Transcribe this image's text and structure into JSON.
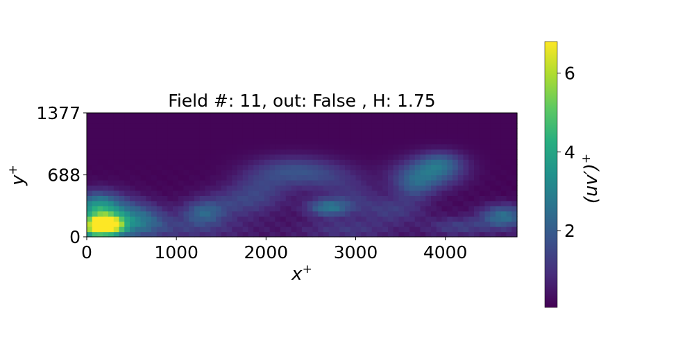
{
  "chart_data": {
    "type": "heatmap",
    "title": "Field #: 11, out: False , H: 1.75",
    "xlabel": "x",
    "xlabel_sup": "+",
    "ylabel": "y",
    "ylabel_sup": "+",
    "xlim": [
      0,
      4800
    ],
    "ylim": [
      0,
      1377
    ],
    "xticks": [
      0,
      1000,
      2000,
      3000,
      4000
    ],
    "xtick_labels": [
      "0",
      "1000",
      "2000",
      "3000",
      "4000"
    ],
    "yticks": [
      0,
      688,
      1377
    ],
    "ytick_labels": [
      "0",
      "688",
      "1377"
    ],
    "colormap": "viridis",
    "colorbar": {
      "label": "(uv′)",
      "label_sup": "+",
      "range": [
        0.05,
        6.8
      ],
      "ticks": [
        2,
        4,
        6
      ],
      "tick_labels": [
        "2",
        "4",
        "6"
      ]
    },
    "grid": false,
    "features": [
      {
        "x": 220,
        "y": 130,
        "sx": 120,
        "sy": 70,
        "value": 6.4
      },
      {
        "x": 250,
        "y": 200,
        "sx": 280,
        "sy": 160,
        "value": 3.0
      },
      {
        "x": 120,
        "y": 350,
        "sx": 160,
        "sy": 110,
        "value": 2.0
      },
      {
        "x": 60,
        "y": 100,
        "sx": 90,
        "sy": 80,
        "value": 2.2
      },
      {
        "x": 650,
        "y": 200,
        "sx": 180,
        "sy": 110,
        "value": 1.1
      },
      {
        "x": 1300,
        "y": 270,
        "sx": 160,
        "sy": 90,
        "value": 1.7
      },
      {
        "x": 1650,
        "y": 380,
        "sx": 300,
        "sy": 120,
        "value": 1.0
      },
      {
        "x": 2300,
        "y": 750,
        "sx": 300,
        "sy": 110,
        "value": 1.3
      },
      {
        "x": 1950,
        "y": 560,
        "sx": 240,
        "sy": 140,
        "value": 1.0
      },
      {
        "x": 2700,
        "y": 330,
        "sx": 170,
        "sy": 70,
        "value": 2.4
      },
      {
        "x": 2700,
        "y": 650,
        "sx": 280,
        "sy": 120,
        "value": 0.9
      },
      {
        "x": 3400,
        "y": 300,
        "sx": 250,
        "sy": 100,
        "value": 1.0
      },
      {
        "x": 3800,
        "y": 700,
        "sx": 260,
        "sy": 120,
        "value": 2.0
      },
      {
        "x": 3950,
        "y": 830,
        "sx": 180,
        "sy": 90,
        "value": 1.5
      },
      {
        "x": 3650,
        "y": 550,
        "sx": 160,
        "sy": 110,
        "value": 1.2
      },
      {
        "x": 4650,
        "y": 230,
        "sx": 180,
        "sy": 90,
        "value": 2.3
      },
      {
        "x": 4150,
        "y": 120,
        "sx": 240,
        "sy": 70,
        "value": 1.0
      },
      {
        "x": 1100,
        "y": 100,
        "sx": 450,
        "sy": 90,
        "value": 0.8
      },
      {
        "x": 2900,
        "y": 90,
        "sx": 350,
        "sy": 80,
        "value": 0.8
      },
      {
        "x": 3000,
        "y": 450,
        "sx": 200,
        "sy": 110,
        "value": 0.7
      }
    ]
  }
}
